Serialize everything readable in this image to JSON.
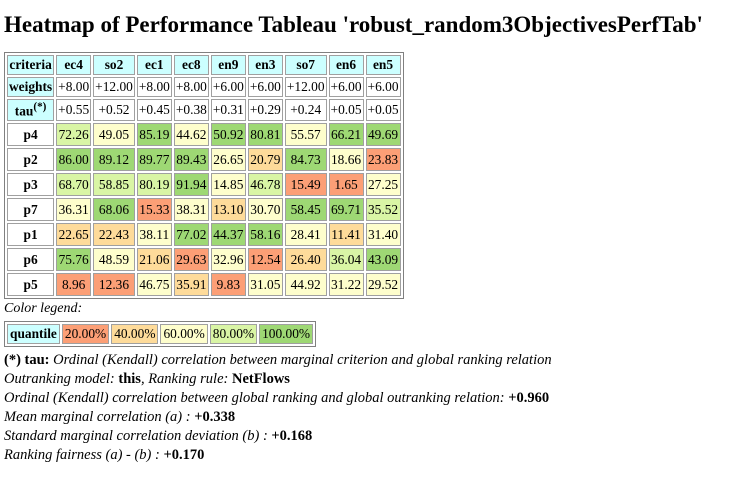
{
  "title": "Heatmap of Performance Tableau 'robust_random3ObjectivesPerfTab'",
  "chart_data": {
    "type": "heatmap",
    "corner_label": "criteria",
    "criteria": [
      "ec4",
      "so2",
      "ec1",
      "ec8",
      "en9",
      "en3",
      "so7",
      "en6",
      "en5"
    ],
    "weights_label": "weights",
    "weights": [
      "+8.00",
      "+12.00",
      "+8.00",
      "+8.00",
      "+6.00",
      "+6.00",
      "+12.00",
      "+6.00",
      "+6.00"
    ],
    "tau_label": "tau",
    "tau_marker": "(*)",
    "tau": [
      "+0.55",
      "+0.52",
      "+0.45",
      "+0.38",
      "+0.31",
      "+0.29",
      "+0.24",
      "+0.05",
      "+0.05"
    ],
    "rows": [
      {
        "name": "p4",
        "values": [
          "72.26",
          "49.05",
          "85.19",
          "44.62",
          "50.92",
          "80.81",
          "55.57",
          "66.21",
          "49.69"
        ],
        "classes": [
          4,
          3,
          5,
          3,
          5,
          5,
          3,
          5,
          5
        ]
      },
      {
        "name": "p2",
        "values": [
          "86.00",
          "89.12",
          "89.77",
          "89.43",
          "26.65",
          "20.79",
          "84.73",
          "18.66",
          "23.83"
        ],
        "classes": [
          5,
          5,
          5,
          5,
          3,
          2,
          5,
          3,
          1
        ]
      },
      {
        "name": "p3",
        "values": [
          "68.70",
          "58.85",
          "80.19",
          "91.94",
          "14.85",
          "46.78",
          "15.49",
          "1.65",
          "27.25"
        ],
        "classes": [
          4,
          4,
          4,
          5,
          3,
          4,
          1,
          1,
          3
        ]
      },
      {
        "name": "p7",
        "values": [
          "36.31",
          "68.06",
          "15.33",
          "38.31",
          "13.10",
          "30.70",
          "58.45",
          "69.71",
          "35.52"
        ],
        "classes": [
          3,
          5,
          1,
          3,
          2,
          3,
          5,
          5,
          4
        ]
      },
      {
        "name": "p1",
        "values": [
          "22.65",
          "22.43",
          "38.11",
          "77.02",
          "44.37",
          "58.16",
          "28.41",
          "11.41",
          "31.40"
        ],
        "classes": [
          2,
          2,
          3,
          5,
          5,
          5,
          3,
          2,
          3
        ]
      },
      {
        "name": "p6",
        "values": [
          "75.76",
          "48.59",
          "21.06",
          "29.63",
          "32.96",
          "12.54",
          "26.40",
          "36.04",
          "43.09"
        ],
        "classes": [
          5,
          3,
          2,
          1,
          3,
          1,
          2,
          4,
          5
        ]
      },
      {
        "name": "p5",
        "values": [
          "8.96",
          "12.36",
          "46.75",
          "35.91",
          "9.83",
          "31.05",
          "44.92",
          "31.22",
          "29.52"
        ],
        "classes": [
          1,
          1,
          3,
          2,
          1,
          3,
          3,
          3,
          3
        ]
      }
    ],
    "colors": [
      "#fc9f76",
      "#fedb9a",
      "#fefecc",
      "#d9f5a5",
      "#9ed874"
    ],
    "legend": {
      "title": "Color legend:",
      "label": "quantile",
      "entries": [
        "20.00%",
        "40.00%",
        "60.00%",
        "80.00%",
        "100.00%"
      ]
    }
  },
  "notes": {
    "tau_note_marker": "(*) tau:",
    "tau_note_text": " Ordinal (Kendall) correlation between marginal criterion and global ranking relation",
    "model_label": "Outranking model: ",
    "model_value": "this",
    "rule_label": ", Ranking rule: ",
    "rule_value": "NetFlows",
    "corr_label": "Ordinal (Kendall) correlation between global ranking and global outranking relation: ",
    "corr_value": "+0.960",
    "mean_label": "Mean marginal correlation (a) : ",
    "mean_value": "+0.338",
    "std_label": "Standard marginal correlation deviation (b) : ",
    "std_value": "+0.168",
    "fair_label": "Ranking fairness (a) - (b) : ",
    "fair_value": "+0.170"
  }
}
